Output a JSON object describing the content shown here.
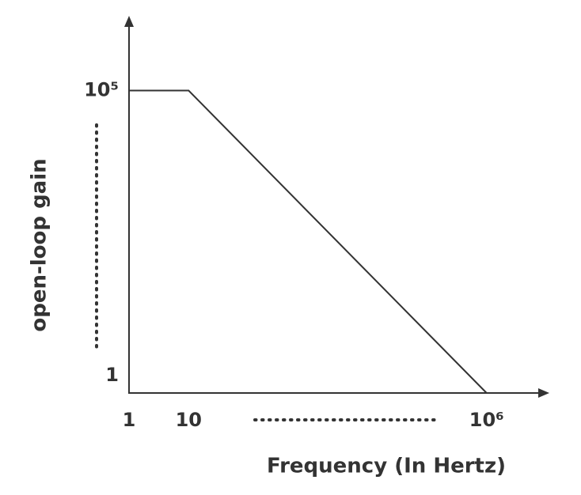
{
  "chart_data": {
    "type": "line",
    "xlabel": "Frequency (In Hertz)",
    "ylabel": "open-loop gain",
    "x": [
      1,
      10,
      1000000
    ],
    "values": [
      100000,
      100000,
      1
    ],
    "color": "#333333",
    "xscale": "log",
    "yscale": "log",
    "xlim": [
      1,
      10000000
    ],
    "ylim": [
      1,
      1000000
    ],
    "xticks": [
      1,
      10,
      {
        "value": 1000000,
        "label": "10⁶"
      }
    ],
    "yticks": [
      1,
      {
        "value": 100000,
        "label": "10⁵"
      }
    ],
    "grid": false
  }
}
